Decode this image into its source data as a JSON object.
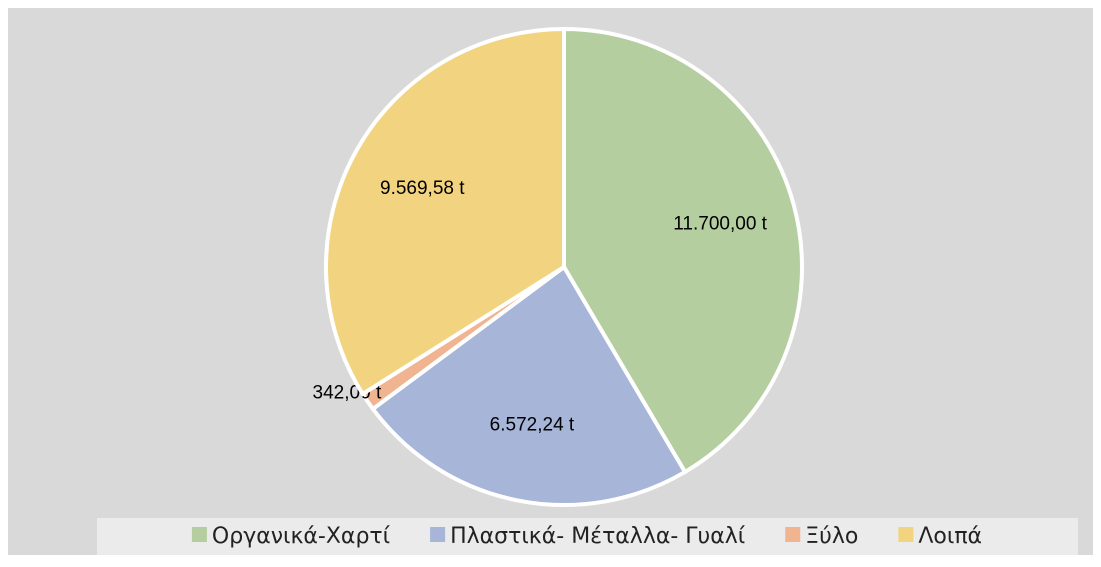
{
  "chart_data": {
    "type": "pie",
    "categories": [
      "Οργανικά-Χαρτί",
      "Πλαστικά- Μέταλλα- Γυαλί",
      "Ξύλο",
      "Λοιπά"
    ],
    "values": [
      11700,
      6572.24,
      342,
      9569.58
    ],
    "value_labels": [
      "11.700,00 t",
      "6.572,24 t",
      "342,00 t",
      "9.569,58 t"
    ],
    "colors": [
      "#b5cea0",
      "#a6b5d8",
      "#f0b491",
      "#f2d480"
    ],
    "legend": "bottom"
  }
}
